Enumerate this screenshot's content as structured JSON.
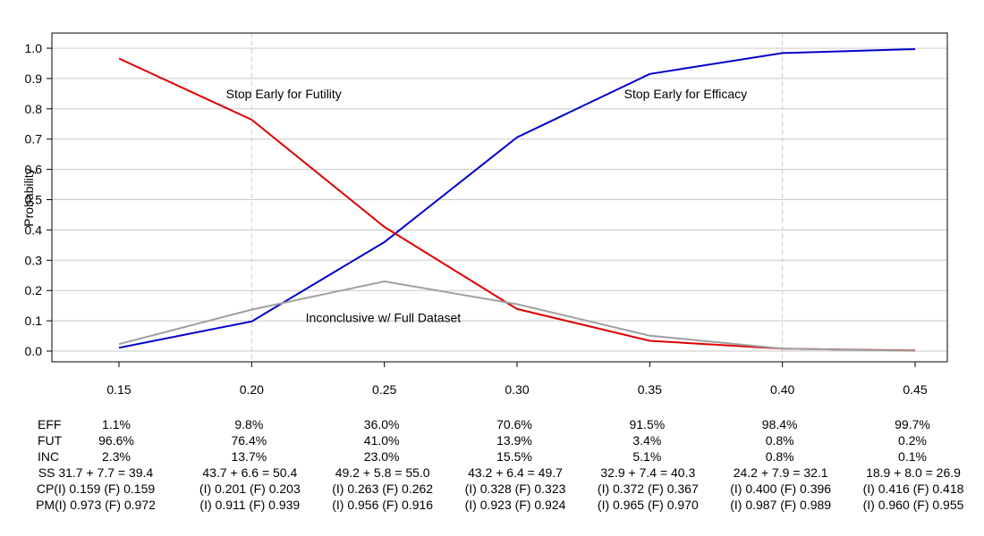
{
  "chart_data": {
    "type": "line",
    "xlabel": "",
    "ylabel": "Probability",
    "xlim": [
      0.15,
      0.45
    ],
    "ylim": [
      0.0,
      1.0
    ],
    "x_ticks": [
      "0.15",
      "0.20",
      "0.25",
      "0.30",
      "0.35",
      "0.40",
      "0.45"
    ],
    "y_ticks": [
      "0.0",
      "0.1",
      "0.2",
      "0.3",
      "0.4",
      "0.5",
      "0.6",
      "0.7",
      "0.8",
      "0.9",
      "1.0"
    ],
    "x": [
      0.15,
      0.2,
      0.25,
      0.3,
      0.35,
      0.4,
      0.45
    ],
    "series": [
      {
        "color": "#0000cc",
        "values": [
          0.011,
          0.098,
          0.36,
          0.706,
          0.915,
          0.984,
          0.997
        ]
      },
      {
        "color": "#dd0000",
        "values": [
          0.966,
          0.764,
          0.41,
          0.139,
          0.034,
          0.008,
          0.002
        ]
      },
      {
        "color": "#a0a0a0",
        "values": [
          0.023,
          0.137,
          0.23,
          0.155,
          0.051,
          0.008,
          0.001
        ]
      }
    ],
    "annotations": [
      {
        "text": "Stop Early for Futility",
        "x": 0.19,
        "y": 0.85
      },
      {
        "text": "Stop Early for Efficacy",
        "x": 0.34,
        "y": 0.85
      },
      {
        "text": "Inconclusive w/ Full Dataset",
        "x": 0.22,
        "y": 0.11
      }
    ],
    "grid": true,
    "vlines": [
      0.2,
      0.4
    ]
  },
  "table": {
    "row_labels": [
      "EFF",
      "FUT",
      "INC"
    ],
    "rows": [
      [
        "1.1%",
        "9.8%",
        "36.0%",
        "70.6%",
        "91.5%",
        "98.4%",
        "99.7%"
      ],
      [
        "96.6%",
        "76.4%",
        "41.0%",
        "13.9%",
        "3.4%",
        "0.8%",
        "0.2%"
      ],
      [
        "2.3%",
        "13.7%",
        "23.0%",
        "15.5%",
        "5.1%",
        "0.8%",
        "0.1%"
      ]
    ],
    "extra_rows": [
      [
        "SS 31.7 + 7.7 = 39.4",
        "43.7 + 6.6 = 50.4",
        "49.2 + 5.8 = 55.0",
        "43.2 + 6.4 = 49.7",
        "32.9 + 7.4 = 40.3",
        "24.2 + 7.9 = 32.1",
        "18.9 + 8.0 = 26.9"
      ],
      [
        "CP(I) 0.159 (F) 0.159",
        "(I) 0.201 (F) 0.203",
        "(I) 0.263 (F) 0.262",
        "(I) 0.328 (F) 0.323",
        "(I) 0.372 (F) 0.367",
        "(I) 0.400 (F) 0.396",
        "(I) 0.416 (F) 0.418"
      ],
      [
        "PM(I) 0.973 (F) 0.972",
        "(I) 0.911 (F) 0.939",
        "(I) 0.956 (F) 0.916",
        "(I) 0.923 (F) 0.924",
        "(I) 0.965 (F) 0.970",
        "(I) 0.987 (F) 0.989",
        "(I) 0.960 (F) 0.955"
      ]
    ]
  }
}
